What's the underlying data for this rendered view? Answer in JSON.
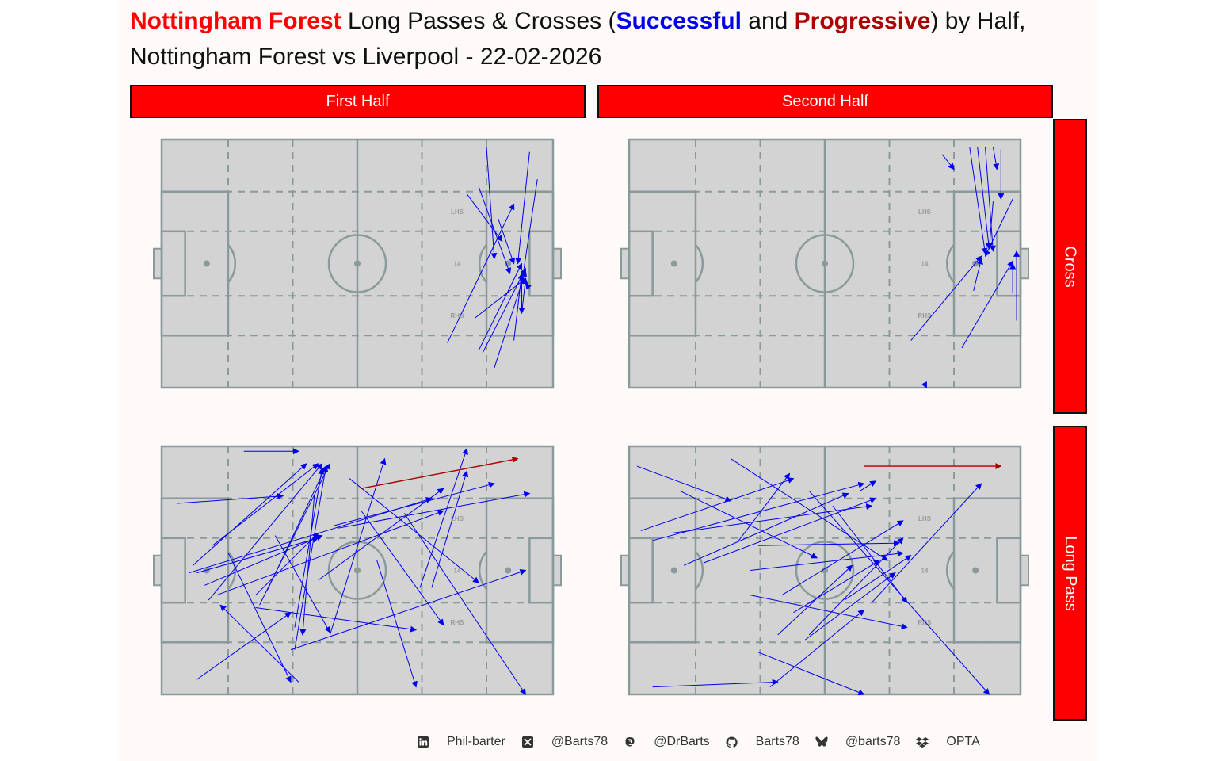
{
  "title": {
    "team": "Nottingham Forest",
    "middle1": " Long Passes & Crosses (",
    "successful": "Successful",
    "and": " and ",
    "progressive": "Progressive",
    "end": ") by Half,",
    "line2": "Nottingham Forest vs Liverpool - 22-02-2026"
  },
  "facets": {
    "columns": [
      "First Half",
      "Second Half"
    ],
    "rows": [
      "Cross",
      "Long Pass"
    ]
  },
  "pitch_labels": {
    "lhs": "LHS",
    "center": "14",
    "rhs": "RHS"
  },
  "colors": {
    "successful": "#0000ee",
    "progressive": "#aa0000",
    "team": "#ff0000",
    "strip": "#ff0000",
    "pitch_fill": "#d3d3d3",
    "pitch_line": "#8a9a9a",
    "background": "#fffafa"
  },
  "footer": [
    {
      "icon": "linkedin-icon",
      "text": "Phil-barter"
    },
    {
      "icon": "x-icon",
      "text": "@Barts78"
    },
    {
      "icon": "mastodon-icon",
      "text": "@DrBarts"
    },
    {
      "icon": "github-icon",
      "text": "Barts78"
    },
    {
      "icon": "bluesky-icon",
      "text": "@barts78"
    },
    {
      "icon": "dropbox-icon",
      "text": "OPTA"
    }
  ],
  "chart_data": {
    "type": "scatter",
    "description_units": "pitch coordinates 0-100 (x: attacking direction left to right, y: 0 = top touchline, 100 = bottom touchline)",
    "xlim": [
      0,
      100
    ],
    "ylim": [
      0,
      100
    ],
    "panels": [
      {
        "half": "First Half",
        "event": "Cross",
        "passes": [
          {
            "x": 83,
            "y": 3,
            "ex": 85,
            "ey": 48,
            "type": "successful"
          },
          {
            "x": 94,
            "y": 5,
            "ex": 91,
            "ey": 50,
            "type": "successful"
          },
          {
            "x": 96,
            "y": 16,
            "ex": 92,
            "ey": 58,
            "type": "successful"
          },
          {
            "x": 78,
            "y": 22,
            "ex": 87,
            "ey": 41,
            "type": "successful"
          },
          {
            "x": 81,
            "y": 19,
            "ex": 89,
            "ey": 54,
            "type": "successful"
          },
          {
            "x": 86,
            "y": 32,
            "ex": 90,
            "ey": 50,
            "type": "successful"
          },
          {
            "x": 73,
            "y": 82,
            "ex": 90,
            "ey": 26,
            "type": "successful"
          },
          {
            "x": 81,
            "y": 85,
            "ex": 92,
            "ey": 50,
            "type": "successful"
          },
          {
            "x": 82,
            "y": 86,
            "ex": 93,
            "ey": 52,
            "type": "successful"
          },
          {
            "x": 85,
            "y": 92,
            "ex": 93,
            "ey": 53,
            "type": "successful"
          },
          {
            "x": 90,
            "y": 81,
            "ex": 92,
            "ey": 54,
            "type": "successful"
          },
          {
            "x": 92,
            "y": 70,
            "ex": 93,
            "ey": 56,
            "type": "successful"
          },
          {
            "x": 80,
            "y": 72,
            "ex": 93,
            "ey": 56,
            "type": "successful"
          },
          {
            "x": 94,
            "y": 60,
            "ex": 93,
            "ey": 58,
            "type": "successful"
          },
          {
            "x": 92,
            "y": 58,
            "ex": 92,
            "ey": 70,
            "type": "successful"
          }
        ]
      },
      {
        "half": "Second Half",
        "event": "Cross",
        "passes": [
          {
            "x": 80,
            "y": 6,
            "ex": 83,
            "ey": 12,
            "type": "successful"
          },
          {
            "x": 87,
            "y": 3,
            "ex": 91,
            "ey": 46,
            "type": "successful"
          },
          {
            "x": 89,
            "y": 3,
            "ex": 92,
            "ey": 44,
            "type": "successful"
          },
          {
            "x": 91,
            "y": 3,
            "ex": 93,
            "ey": 45,
            "type": "successful"
          },
          {
            "x": 93,
            "y": 3,
            "ex": 94,
            "ey": 12,
            "type": "successful"
          },
          {
            "x": 95,
            "y": 4,
            "ex": 95,
            "ey": 24,
            "type": "successful"
          },
          {
            "x": 93,
            "y": 25,
            "ex": 92,
            "ey": 44,
            "type": "successful"
          },
          {
            "x": 98,
            "y": 24,
            "ex": 91,
            "ey": 47,
            "type": "successful"
          },
          {
            "x": 72,
            "y": 81,
            "ex": 90,
            "ey": 47,
            "type": "successful"
          },
          {
            "x": 88,
            "y": 61,
            "ex": 90,
            "ey": 48,
            "type": "successful"
          },
          {
            "x": 85,
            "y": 84,
            "ex": 98,
            "ey": 49,
            "type": "successful"
          },
          {
            "x": 99,
            "y": 73,
            "ex": 99,
            "ey": 45,
            "type": "successful"
          },
          {
            "x": 98,
            "y": 62,
            "ex": 98,
            "ey": 50,
            "type": "successful"
          },
          {
            "x": 76,
            "y": 100,
            "ex": 76,
            "ey": 100,
            "type": "successful"
          }
        ]
      },
      {
        "half": "First Half",
        "event": "Long Pass",
        "passes": [
          {
            "x": 21,
            "y": 2,
            "ex": 35,
            "ey": 2,
            "type": "successful"
          },
          {
            "x": 4,
            "y": 23,
            "ex": 31,
            "ey": 20,
            "type": "successful"
          },
          {
            "x": 8,
            "y": 48,
            "ex": 37,
            "ey": 7,
            "type": "successful"
          },
          {
            "x": 13,
            "y": 40,
            "ex": 40,
            "ey": 7,
            "type": "successful"
          },
          {
            "x": 12,
            "y": 62,
            "ex": 41,
            "ey": 7,
            "type": "successful"
          },
          {
            "x": 27,
            "y": 58,
            "ex": 42,
            "ey": 8,
            "type": "successful"
          },
          {
            "x": 25,
            "y": 64,
            "ex": 43,
            "ey": 7,
            "type": "successful"
          },
          {
            "x": 34,
            "y": 73,
            "ex": 41,
            "ey": 9,
            "type": "successful"
          },
          {
            "x": 34,
            "y": 82,
            "ex": 42,
            "ey": 8,
            "type": "successful"
          },
          {
            "x": 43,
            "y": 76,
            "ex": 57,
            "ey": 5,
            "type": "successful"
          },
          {
            "x": 40,
            "y": 54,
            "ex": 72,
            "ey": 17,
            "type": "successful"
          },
          {
            "x": 44,
            "y": 32,
            "ex": 85,
            "ey": 15,
            "type": "successful"
          },
          {
            "x": 66,
            "y": 57,
            "ex": 78,
            "ey": 1,
            "type": "successful"
          },
          {
            "x": 45,
            "y": 33,
            "ex": 94,
            "ey": 19,
            "type": "successful"
          },
          {
            "x": 11,
            "y": 56,
            "ex": 41,
            "ey": 36,
            "type": "successful"
          },
          {
            "x": 7,
            "y": 51,
            "ex": 69,
            "ey": 21,
            "type": "successful"
          },
          {
            "x": 14,
            "y": 60,
            "ex": 72,
            "ey": 26,
            "type": "successful"
          },
          {
            "x": 9,
            "y": 51,
            "ex": 40,
            "ey": 37,
            "type": "successful"
          },
          {
            "x": 29,
            "y": 36,
            "ex": 43,
            "ey": 75,
            "type": "successful"
          },
          {
            "x": 17,
            "y": 43,
            "ex": 33,
            "ey": 95,
            "type": "successful"
          },
          {
            "x": 35,
            "y": 95,
            "ex": 15,
            "ey": 64,
            "type": "successful"
          },
          {
            "x": 9,
            "y": 94,
            "ex": 33,
            "ey": 67,
            "type": "successful"
          },
          {
            "x": 24,
            "y": 65,
            "ex": 65,
            "ey": 74,
            "type": "successful"
          },
          {
            "x": 48,
            "y": 13,
            "ex": 81,
            "ey": 55,
            "type": "successful"
          },
          {
            "x": 39,
            "y": 20,
            "ex": 36,
            "ey": 76,
            "type": "successful"
          },
          {
            "x": 62,
            "y": 27,
            "ex": 93,
            "ey": 100,
            "type": "successful"
          },
          {
            "x": 55,
            "y": 46,
            "ex": 65,
            "ey": 97,
            "type": "successful"
          },
          {
            "x": 51,
            "y": 26,
            "ex": 72,
            "ey": 72,
            "type": "successful"
          },
          {
            "x": 33,
            "y": 82,
            "ex": 93,
            "ey": 50,
            "type": "successful"
          },
          {
            "x": 69,
            "y": 57,
            "ex": 78,
            "ey": 10,
            "type": "successful"
          },
          {
            "x": 24,
            "y": 60,
            "ex": 40,
            "ey": 35,
            "type": "successful"
          },
          {
            "x": 51,
            "y": 17,
            "ex": 91,
            "ey": 5,
            "type": "progressive"
          }
        ]
      },
      {
        "half": "Second Half",
        "event": "Long Pass",
        "passes": [
          {
            "x": 2,
            "y": 8,
            "ex": 26,
            "ey": 22,
            "type": "successful"
          },
          {
            "x": 3,
            "y": 34,
            "ex": 42,
            "ey": 13,
            "type": "successful"
          },
          {
            "x": 13,
            "y": 18,
            "ex": 48,
            "ey": 45,
            "type": "successful"
          },
          {
            "x": 26,
            "y": 5,
            "ex": 66,
            "ey": 46,
            "type": "successful"
          },
          {
            "x": 6,
            "y": 38,
            "ex": 60,
            "ey": 15,
            "type": "successful"
          },
          {
            "x": 14,
            "y": 48,
            "ex": 56,
            "ey": 19,
            "type": "successful"
          },
          {
            "x": 19,
            "y": 47,
            "ex": 63,
            "ey": 21,
            "type": "successful"
          },
          {
            "x": 11,
            "y": 35,
            "ex": 62,
            "ey": 24,
            "type": "successful"
          },
          {
            "x": 33,
            "y": 40,
            "ex": 69,
            "ey": 39,
            "type": "successful"
          },
          {
            "x": 28,
            "y": 38,
            "ex": 41,
            "ey": 11,
            "type": "successful"
          },
          {
            "x": 31,
            "y": 50,
            "ex": 70,
            "ey": 43,
            "type": "successful"
          },
          {
            "x": 46,
            "y": 18,
            "ex": 92,
            "ey": 100,
            "type": "successful"
          },
          {
            "x": 52,
            "y": 24,
            "ex": 71,
            "ey": 63,
            "type": "successful"
          },
          {
            "x": 39,
            "y": 60,
            "ex": 70,
            "ey": 30,
            "type": "successful"
          },
          {
            "x": 45,
            "y": 78,
            "ex": 68,
            "ey": 51,
            "type": "successful"
          },
          {
            "x": 38,
            "y": 76,
            "ex": 57,
            "ey": 48,
            "type": "successful"
          },
          {
            "x": 31,
            "y": 60,
            "ex": 71,
            "ey": 73,
            "type": "successful"
          },
          {
            "x": 33,
            "y": 83,
            "ex": 60,
            "ey": 100,
            "type": "successful"
          },
          {
            "x": 6,
            "y": 97,
            "ex": 38,
            "ey": 95,
            "type": "successful"
          },
          {
            "x": 36,
            "y": 97,
            "ex": 60,
            "ey": 66,
            "type": "successful"
          },
          {
            "x": 62,
            "y": 63,
            "ex": 90,
            "ey": 15,
            "type": "successful"
          },
          {
            "x": 46,
            "y": 76,
            "ex": 70,
            "ey": 37,
            "type": "successful"
          },
          {
            "x": 55,
            "y": 62,
            "ex": 72,
            "ey": 44,
            "type": "successful"
          },
          {
            "x": 42,
            "y": 67,
            "ex": 64,
            "ey": 46,
            "type": "successful"
          },
          {
            "x": 59,
            "y": 18,
            "ex": 63,
            "ey": 14,
            "type": "successful"
          },
          {
            "x": 60,
            "y": 8,
            "ex": 95,
            "ey": 8,
            "type": "progressive"
          }
        ]
      }
    ]
  }
}
